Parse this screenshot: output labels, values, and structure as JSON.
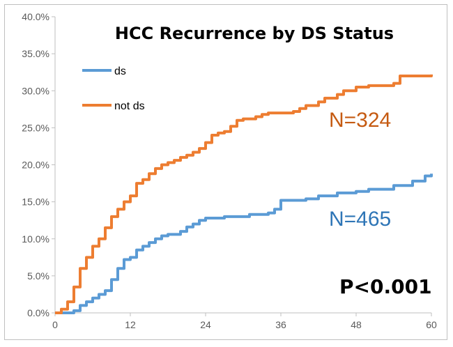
{
  "chart_data": {
    "type": "line",
    "title": "HCC Recurrence by DS Status",
    "xlabel": "",
    "ylabel": "",
    "xlim": [
      0,
      60
    ],
    "ylim": [
      0,
      40
    ],
    "x_ticks": [
      "0",
      "12",
      "24",
      "36",
      "48",
      "60"
    ],
    "y_ticks": [
      "0.0%",
      "5.0%",
      "10.0%",
      "15.0%",
      "20.0%",
      "25.0%",
      "30.0%",
      "35.0%",
      "40.0%"
    ],
    "grid": false,
    "legend_position": "top-left",
    "series": [
      {
        "name": "ds",
        "color": "#5b9bd5",
        "points": [
          [
            0,
            0
          ],
          [
            3,
            0.3
          ],
          [
            4,
            1
          ],
          [
            5,
            1.5
          ],
          [
            6,
            2
          ],
          [
            7,
            2.5
          ],
          [
            8,
            3
          ],
          [
            9,
            4.5
          ],
          [
            10,
            6
          ],
          [
            11,
            7.2
          ],
          [
            12,
            7.5
          ],
          [
            13,
            8.5
          ],
          [
            14,
            9
          ],
          [
            15,
            9.5
          ],
          [
            16,
            10
          ],
          [
            17,
            10.4
          ],
          [
            18,
            10.6
          ],
          [
            20,
            11
          ],
          [
            21,
            11.6
          ],
          [
            22,
            12
          ],
          [
            23,
            12.5
          ],
          [
            24,
            12.8
          ],
          [
            27,
            13
          ],
          [
            30,
            13
          ],
          [
            31,
            13.3
          ],
          [
            34,
            13.5
          ],
          [
            35,
            14
          ],
          [
            36,
            15.2
          ],
          [
            40,
            15.4
          ],
          [
            42,
            15.8
          ],
          [
            45,
            16.2
          ],
          [
            48,
            16.4
          ],
          [
            50,
            16.7
          ],
          [
            54,
            17.2
          ],
          [
            57,
            17.8
          ],
          [
            59,
            18.5
          ],
          [
            60,
            18.8
          ]
        ]
      },
      {
        "name": "not ds",
        "color": "#ed7d31",
        "points": [
          [
            0,
            0
          ],
          [
            1,
            0.5
          ],
          [
            2,
            1.5
          ],
          [
            3,
            3.5
          ],
          [
            4,
            6
          ],
          [
            5,
            7.5
          ],
          [
            6,
            9
          ],
          [
            7,
            10
          ],
          [
            8,
            11.5
          ],
          [
            9,
            13
          ],
          [
            10,
            14
          ],
          [
            11,
            15
          ],
          [
            12,
            15.8
          ],
          [
            13,
            17.5
          ],
          [
            14,
            18
          ],
          [
            15,
            18.8
          ],
          [
            16,
            19.5
          ],
          [
            17,
            20
          ],
          [
            18,
            20.3
          ],
          [
            19,
            20.6
          ],
          [
            20,
            21
          ],
          [
            21,
            21.3
          ],
          [
            22,
            21.7
          ],
          [
            23,
            22.2
          ],
          [
            24,
            23
          ],
          [
            25,
            24
          ],
          [
            26,
            24.3
          ],
          [
            27,
            24.5
          ],
          [
            28,
            25.2
          ],
          [
            29,
            26
          ],
          [
            30,
            26.2
          ],
          [
            32,
            26.5
          ],
          [
            33,
            26.8
          ],
          [
            34,
            27
          ],
          [
            38,
            27.2
          ],
          [
            39,
            27.6
          ],
          [
            40,
            28
          ],
          [
            42,
            28.5
          ],
          [
            43,
            29
          ],
          [
            45,
            29.5
          ],
          [
            46,
            30
          ],
          [
            48,
            30.5
          ],
          [
            50,
            30.7
          ],
          [
            54,
            31
          ],
          [
            55,
            32
          ],
          [
            60,
            32.2
          ]
        ]
      }
    ],
    "annotations": [
      {
        "text": "N=324",
        "color": "#c55a11"
      },
      {
        "text": "N=465",
        "color": "#2e75b6"
      },
      {
        "text": "P<0.001",
        "color": "#000000"
      }
    ]
  }
}
